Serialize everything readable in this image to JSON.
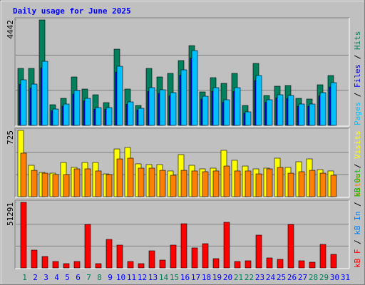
{
  "chart_data": [
    {
      "type": "bar",
      "title": "Daily usage for June 2025",
      "ylim": [
        0,
        4442
      ],
      "yticks": [
        4442
      ],
      "separator": "/",
      "series": [
        {
          "name": "Hits",
          "color": "#00805c",
          "values": [
            2401,
            2401,
            4442,
            870,
            1140,
            2041,
            1531,
            1290,
            960,
            3211,
            1531,
            840,
            2401,
            2041,
            2191,
            2731,
            3361,
            1411,
            2011,
            1771,
            2191,
            840,
            2611,
            1260,
            1651,
            1681,
            1140,
            1110,
            1711,
            2101,
            0
          ]
        },
        {
          "name": "Files",
          "color": "#0000ff",
          "values": [
            1730,
            1570,
            2430,
            620,
            810,
            1320,
            1030,
            680,
            680,
            2240,
            890,
            650,
            1430,
            1350,
            1240,
            2110,
            2840,
            1110,
            1430,
            970,
            1430,
            510,
            1890,
            970,
            1160,
            1130,
            810,
            810,
            1240,
            1620,
            0
          ]
        },
        {
          "name": "Pages",
          "color": "#00c0ff",
          "values": [
            1921,
            1741,
            2701,
            690,
            900,
            1471,
            1140,
            750,
            750,
            2491,
            990,
            720,
            1591,
            1501,
            1381,
            2341,
            3151,
            1230,
            1591,
            1080,
            1591,
            570,
            2101,
            1080,
            1290,
            1260,
            900,
            900,
            1381,
            1801,
            0
          ]
        }
      ]
    },
    {
      "type": "bar",
      "ylim": [
        0,
        725
      ],
      "yticks": [
        725
      ],
      "separator": "/",
      "series": [
        {
          "name": "Visits",
          "color": "#ffff00",
          "values": [
            725,
            343,
            265,
            257,
            374,
            320,
            374,
            374,
            249,
            522,
            538,
            359,
            351,
            351,
            281,
            460,
            343,
            304,
            312,
            507,
            398,
            335,
            304,
            312,
            421,
            320,
            382,
            413,
            296,
            281,
            0
          ]
        },
        {
          "name": "Sites",
          "color": "#ff8000",
          "values": [
            476,
            288,
            257,
            242,
            242,
            304,
            304,
            281,
            242,
            413,
            421,
            312,
            312,
            288,
            234,
            288,
            281,
            273,
            281,
            335,
            281,
            281,
            249,
            304,
            320,
            257,
            273,
            288,
            257,
            234,
            0
          ]
        }
      ]
    },
    {
      "type": "bar",
      "ylim": [
        0,
        51291
      ],
      "yticks": [
        51291
      ],
      "separator": "/",
      "categories": [
        "1",
        "2",
        "3",
        "4",
        "5",
        "6",
        "7",
        "8",
        "9",
        "10",
        "11",
        "12",
        "13",
        "14",
        "15",
        "16",
        "17",
        "18",
        "19",
        "20",
        "21",
        "22",
        "23",
        "24",
        "25",
        "26",
        "27",
        "28",
        "29",
        "30",
        "31"
      ],
      "category_colors": [
        "#00805c",
        "#0000ff",
        "#0000ff",
        "#0000ff",
        "#0000ff",
        "#0000ff",
        "#00805c",
        "#00805c",
        "#0000ff",
        "#0000ff",
        "#0000ff",
        "#0000ff",
        "#0000ff",
        "#00805c",
        "#00805c",
        "#0000ff",
        "#0000ff",
        "#0000ff",
        "#0000ff",
        "#0000ff",
        "#00805c",
        "#00805c",
        "#0000ff",
        "#0000ff",
        "#0000ff",
        "#0000ff",
        "#0000ff",
        "#00805c",
        "#00805c",
        "#0000ff",
        "#0000ff"
      ],
      "series": [
        {
          "name": "kB Out",
          "color": "#00c000",
          "values": [
            0,
            0,
            0,
            0,
            0,
            0,
            0,
            0,
            0,
            0,
            0,
            0,
            0,
            0,
            0,
            0,
            0,
            0,
            0,
            0,
            0,
            0,
            0,
            0,
            0,
            0,
            0,
            0,
            0,
            0,
            0
          ]
        },
        {
          "name": "kB In",
          "color": "#0080ff",
          "values": [
            0,
            0,
            0,
            0,
            0,
            0,
            0,
            0,
            0,
            0,
            0,
            0,
            0,
            0,
            0,
            0,
            0,
            0,
            0,
            0,
            0,
            0,
            0,
            0,
            0,
            0,
            0,
            0,
            0,
            0,
            0
          ]
        },
        {
          "name": "kB F",
          "color": "#ff0000",
          "values": [
            51291,
            13938,
            8920,
            5018,
            3345,
            5018,
            34008,
            3345,
            22300,
            17840,
            5018,
            3345,
            13380,
            6133,
            17840,
            34565,
            15610,
            18955,
            7248,
            35680,
            5018,
            5575,
            25645,
            7805,
            6690,
            34008,
            5575,
            4460,
            18398,
            10593,
            0
          ]
        }
      ]
    }
  ]
}
